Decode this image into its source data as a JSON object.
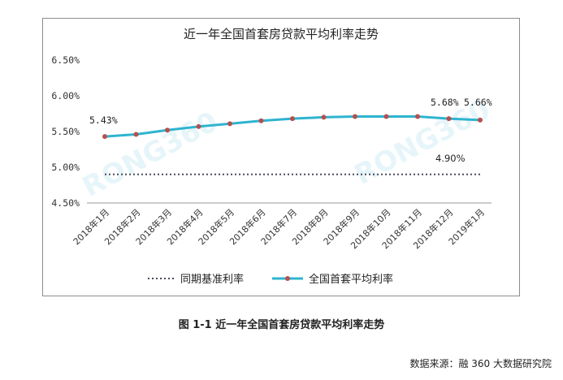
{
  "chart_data": {
    "type": "line",
    "title": "近一年全国首套房贷款平均利率走势",
    "categories": [
      "2018年1月",
      "2018年2月",
      "2018年3月",
      "2018年4月",
      "2018年5月",
      "2018年6月",
      "2018年7月",
      "2018年8月",
      "2018年9月",
      "2018年10月",
      "2018年11月",
      "2018年12月",
      "2019年1月"
    ],
    "yticks": [
      "6.50%",
      "6.00%",
      "5.50%",
      "5.00%",
      "4.50%"
    ],
    "ylim": [
      4.5,
      6.5
    ],
    "grid": false,
    "legend_position": "bottom",
    "series": [
      {
        "name": "同期基准利率",
        "style": "dotted",
        "color": "#4a4a5a",
        "values": [
          4.9,
          4.9,
          4.9,
          4.9,
          4.9,
          4.9,
          4.9,
          4.9,
          4.9,
          4.9,
          4.9,
          4.9,
          4.9
        ]
      },
      {
        "name": "全国首套平均利率",
        "style": "line-markers",
        "color": "#2eb4cf",
        "marker_color": "#b5504f",
        "values": [
          5.43,
          5.46,
          5.52,
          5.57,
          5.61,
          5.65,
          5.68,
          5.7,
          5.71,
          5.71,
          5.71,
          5.68,
          5.66
        ]
      }
    ],
    "annotations": [
      "5.43%",
      "5.68%",
      "5.66%",
      "4.90%"
    ],
    "watermark": "RONG360"
  },
  "caption": "图 1-1  近一年全国首套房贷款平均利率走势",
  "source": "数据来源：融 360 大数据研究院"
}
